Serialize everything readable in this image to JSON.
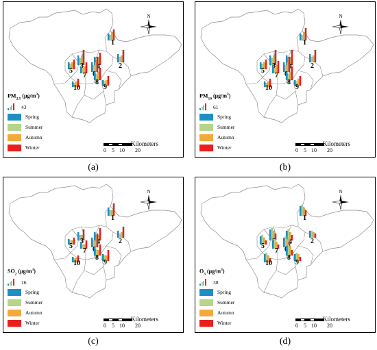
{
  "legend": {
    "seasons": [
      {
        "label": "Spring",
        "color": "#1e8fc5"
      },
      {
        "label": "Summer",
        "color": "#b6d48a"
      },
      {
        "label": "Autumn",
        "color": "#f4a93c"
      },
      {
        "label": "Winter",
        "color": "#e8201e"
      }
    ]
  },
  "north_label": "N",
  "scale_bar": {
    "ticks": [
      "0",
      "5",
      "10",
      "20"
    ],
    "unit": "Kilometers"
  },
  "site_labels": [
    "1",
    "2",
    "3",
    "4",
    "5",
    "6",
    "7",
    "8",
    "9",
    "10"
  ],
  "panels": [
    {
      "caption": "(a)",
      "pollutant_main": "PM",
      "pollutant_sub": "2.5",
      "unit": "(μg/m",
      "unit_sup": "3",
      "unit_close": ")",
      "scale_value": "43"
    },
    {
      "caption": "(b)",
      "pollutant_main": "PM",
      "pollutant_sub": "10",
      "unit": "(μg/m",
      "unit_sup": "3",
      "unit_close": ")",
      "scale_value": "61"
    },
    {
      "caption": "(c)",
      "pollutant_main": "SO",
      "pollutant_sub": "2",
      "unit": "(μg/m",
      "unit_sup": "3",
      "unit_close": ")",
      "scale_value": "16"
    },
    {
      "caption": "(d)",
      "pollutant_main": "O",
      "pollutant_sub": "3",
      "unit": "(μg/m",
      "unit_sup": "3",
      "unit_close": ")",
      "scale_value": "38"
    }
  ]
}
